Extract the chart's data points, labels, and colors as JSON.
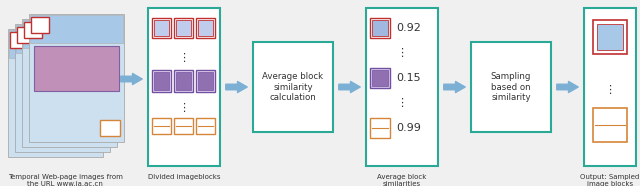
{
  "fig_bg": "#f0f0f0",
  "arrow_color": "#7bafd4",
  "teal_border": "#2aaa96",
  "orange_border": "#d4853a",
  "red_border": "#c03030",
  "purple_border": "#7050a0",
  "label_color": "#333333",
  "caption1": "Temporal Web-page images from\nthe URL www.ia.ac.cn",
  "caption2": "Divided imageblocks",
  "caption3": "Average block\nsimilarities",
  "caption4": "Output: Sampled\nimage blocks",
  "box1_text": "Average block\nsimilarity\ncalculation",
  "box2_text": "Sampling\nbased on\nsimilarity",
  "sim_values": [
    "0.92",
    "0.15",
    "0.99"
  ]
}
